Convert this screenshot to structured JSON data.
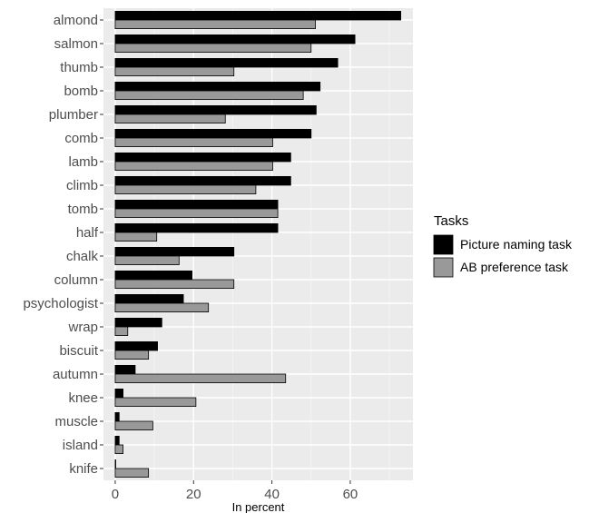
{
  "chart_data": {
    "type": "bar",
    "orientation": "horizontal",
    "categories": [
      "almond",
      "salmon",
      "thumb",
      "bomb",
      "plumber",
      "comb",
      "lamb",
      "climb",
      "tomb",
      "half",
      "chalk",
      "column",
      "psychologist",
      "wrap",
      "biscuit",
      "autumn",
      "knee",
      "muscle",
      "island",
      "knife"
    ],
    "series": [
      {
        "name": "Picture naming task",
        "color": "#000000",
        "values": [
          72.9,
          61.2,
          56.8,
          52.3,
          51.3,
          50.0,
          44.8,
          44.8,
          41.5,
          41.5,
          30.3,
          19.6,
          17.4,
          11.9,
          10.8,
          5.1,
          2.0,
          1.0,
          1.0,
          0.0
        ]
      },
      {
        "name": "AB preference task",
        "color": "#999999",
        "values": [
          51.1,
          50.0,
          30.3,
          48.0,
          28.1,
          40.2,
          40.2,
          35.9,
          41.5,
          10.6,
          16.3,
          30.3,
          23.8,
          3.2,
          8.5,
          43.5,
          20.6,
          9.6,
          2.0,
          8.5
        ]
      }
    ],
    "xlabel": "In percent",
    "ylabel": "",
    "xlim": [
      -3,
      76
    ],
    "xticks": [
      0,
      20,
      40,
      60
    ],
    "legend": {
      "title": "Tasks",
      "position": "right"
    },
    "grid": true,
    "panel_background": "#ebebeb"
  }
}
